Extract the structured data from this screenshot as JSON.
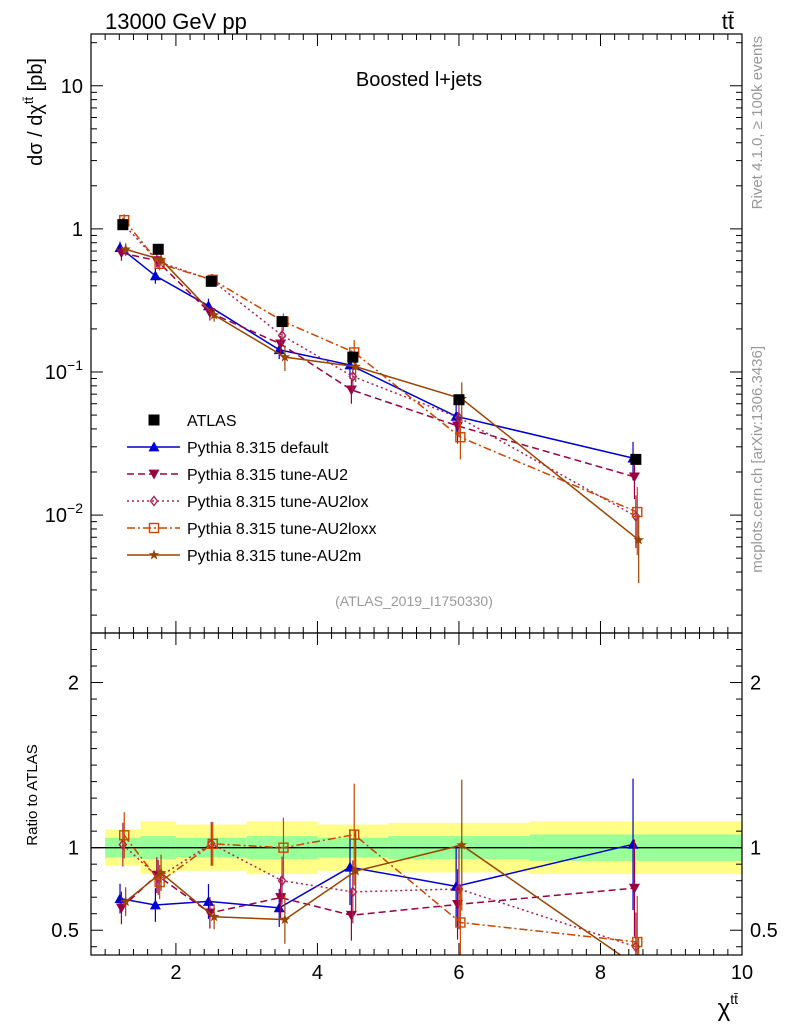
{
  "header": {
    "left": "13000 GeV pp",
    "right": "tt̄"
  },
  "side_text": {
    "top": "Rivet 4.1.0, ≥ 100k events",
    "bottom": "mcplots.cern.ch [arXiv:1306.3436]"
  },
  "chart_data": {
    "type": "scatter",
    "title": "Boosted l+jets",
    "analysis_id": "(ATLAS_2019_I1750330)",
    "ylabel": "dσ / dχ^tt̄ [pb]",
    "xlabel": "χ^tt̄",
    "ratio_ylabel": "Ratio to ATLAS",
    "xlim": [
      0.8,
      10
    ],
    "ylim_main": [
      0.0015,
      23
    ],
    "ylim_ratio": [
      0.35,
      2.3
    ],
    "x_ticks": [
      "2",
      "4",
      "6",
      "8",
      "10"
    ],
    "y_ticks_main": [
      {
        "v": 0.01,
        "label": "10^-2"
      },
      {
        "v": 0.1,
        "label": "10^-1"
      },
      {
        "v": 1,
        "label": "1"
      },
      {
        "v": 10,
        "label": "10"
      }
    ],
    "y_ticks_ratio": [
      {
        "v": 0.5,
        "label": "0.5"
      },
      {
        "v": 1,
        "label": "1"
      },
      {
        "v": 2,
        "label": "2"
      }
    ],
    "x": [
      1.25,
      1.75,
      2.5,
      3.5,
      4.5,
      6.0,
      8.5
    ],
    "bins": [
      [
        1.0,
        1.5
      ],
      [
        1.5,
        2.0
      ],
      [
        2.0,
        3.0
      ],
      [
        3.0,
        4.0
      ],
      [
        4.0,
        5.0
      ],
      [
        5.0,
        7.0
      ],
      [
        7.0,
        10.0
      ]
    ],
    "band_inner": [
      0.06,
      0.07,
      0.06,
      0.07,
      0.06,
      0.07,
      0.08
    ],
    "band_outer": [
      0.11,
      0.16,
      0.14,
      0.16,
      0.14,
      0.15,
      0.16
    ],
    "data": {
      "name": "ATLAS",
      "values": [
        1.07,
        0.72,
        0.43,
        0.225,
        0.127,
        0.064,
        0.0245
      ]
    },
    "series": [
      {
        "name": "Pythia 8.315 default",
        "color": "#0000cc",
        "dash": "",
        "marker": "triangle-up",
        "values": [
          0.74,
          0.47,
          0.29,
          0.143,
          0.112,
          0.049,
          0.025
        ],
        "rel_err": [
          0.1,
          0.12,
          0.12,
          0.14,
          0.2,
          0.25,
          0.3
        ]
      },
      {
        "name": "Pythia 8.315 tune-AU2",
        "color": "#990044",
        "dash": "7,4",
        "marker": "triangle-down",
        "values": [
          0.68,
          0.6,
          0.26,
          0.157,
          0.075,
          0.042,
          0.0185
        ],
        "rel_err": [
          0.12,
          0.1,
          0.12,
          0.14,
          0.2,
          0.25,
          0.3
        ]
      },
      {
        "name": "Pythia 8.315 tune-AU2lox",
        "color": "#aa2255",
        "dash": "2,3",
        "marker": "diamond",
        "values": [
          1.09,
          0.59,
          0.44,
          0.18,
          0.093,
          0.048,
          0.0098
        ],
        "rel_err": [
          0.1,
          0.1,
          0.1,
          0.14,
          0.2,
          0.25,
          0.4
        ]
      },
      {
        "name": "Pythia 8.315 tune-AU2loxx",
        "color": "#cc4400",
        "dash": "8,3,2,3",
        "marker": "square-open",
        "values": [
          1.15,
          0.57,
          0.44,
          0.225,
          0.137,
          0.035,
          0.0105
        ],
        "rel_err": [
          0.1,
          0.1,
          0.1,
          0.14,
          0.22,
          0.3,
          0.5
        ]
      },
      {
        "name": "Pythia 8.315 tune-AU2m",
        "color": "#994400",
        "dash": "",
        "marker": "star",
        "values": [
          0.72,
          0.61,
          0.25,
          0.127,
          0.109,
          0.065,
          0.0067
        ],
        "rel_err": [
          0.1,
          0.1,
          0.1,
          0.2,
          0.22,
          0.3,
          0.5
        ]
      }
    ]
  }
}
